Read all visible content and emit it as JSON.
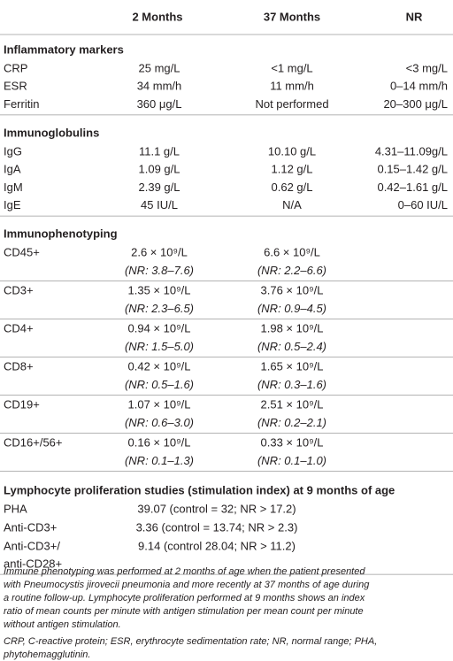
{
  "table": {
    "header": [
      "2 Months",
      "37 Months",
      "NR"
    ],
    "sections": [
      {
        "title": "Inflammatory markers",
        "rows": [
          {
            "label": "CRP",
            "values": [
              "25 mg/L",
              "<1 mg/L",
              "<3 mg/L"
            ]
          },
          {
            "label": "ESR",
            "values": [
              "34 mm/h",
              "11 mm/h",
              "0–14 mm/h"
            ]
          },
          {
            "label": "Ferritin",
            "values": [
              "360 μg/L",
              "Not performed",
              "20–300 μg/L"
            ]
          }
        ]
      },
      {
        "title": "Immunoglobulins",
        "rows": [
          {
            "label": "IgG",
            "values": [
              "11.1 g/L",
              "10.10 g/L",
              "4.31–11.09g/L"
            ]
          },
          {
            "label": "IgA",
            "values": [
              "1.09 g/L",
              "1.12 g/L",
              "0.15–1.42 g/L"
            ]
          },
          {
            "label": "IgM",
            "values": [
              "2.39 g/L",
              "0.62 g/L",
              "0.42–1.61 g/L"
            ]
          },
          {
            "label": "IgE",
            "values": [
              "45 IU/L",
              "N/A",
              "0–60 IU/L"
            ]
          }
        ]
      },
      {
        "title": "Immunophenotyping",
        "rows": [
          {
            "label": "CD45+",
            "values": [
              "2.6 × 10⁹/L",
              "6.6 × 10⁹/L"
            ],
            "ranges": [
              "(NR: 3.8–7.6)",
              "(NR: 2.2–6.6)"
            ]
          },
          {
            "label": "CD3+",
            "values": [
              "1.35 × 10⁹/L",
              "3.76 × 10⁹/L"
            ],
            "ranges": [
              "(NR: 2.3–6.5)",
              "(NR: 0.9–4.5)"
            ]
          },
          {
            "label": "CD4+",
            "values": [
              "0.94 × 10⁹/L",
              "1.98 × 10⁹/L"
            ],
            "ranges": [
              "(NR: 1.5–5.0)",
              "(NR: 0.5–2.4)"
            ]
          },
          {
            "label": "CD8+",
            "values": [
              "0.42 × 10⁹/L",
              "1.65 × 10⁹/L"
            ],
            "ranges": [
              "(NR: 0.5–1.6)",
              "(NR: 0.3–1.6)"
            ]
          },
          {
            "label": "CD19+",
            "values": [
              "1.07 × 10⁹/L",
              "2.51 × 10⁹/L"
            ],
            "ranges": [
              "(NR: 0.6–3.0)",
              "(NR: 0.2–2.1)"
            ]
          },
          {
            "label": "CD16+/56+",
            "values": [
              "0.16 × 10⁹/L",
              "0.33 × 10⁹/L"
            ],
            "ranges": [
              "(NR: 0.1–1.3)",
              "(NR: 0.1–1.0)"
            ]
          }
        ]
      },
      {
        "title": "Lymphocyte proliferation studies (stimulation index) at 9 months of age",
        "rows": [
          {
            "label": "PHA",
            "result": "39.07 (control = 32; NR > 17.2)"
          },
          {
            "label": "Anti-CD3+",
            "result": "3.36 (control = 13.74; NR > 2.3)"
          },
          {
            "label": [
              "Anti-CD3+/",
              "anti-CD28+"
            ],
            "result": "9.14 (control 28.04; NR > 11.2)"
          }
        ]
      }
    ],
    "note_lines": [
      "Immune phenotyping was performed at 2 months of age when the patient presented",
      "with Pneumocystis jirovecii pneumonia and more recently at 37 months of age during",
      "a routine follow-up. Lymphocyte proliferation performed at 9 months shows an index",
      "ratio of mean counts per minute with antigen stimulation per mean count per minute",
      "without antigen stimulation."
    ],
    "abbreviation_lines": [
      "CRP, C-reactive protein; ESR, erythrocyte sedimentation rate; NR, normal range; PHA,",
      "phytohemagglutinin."
    ]
  }
}
